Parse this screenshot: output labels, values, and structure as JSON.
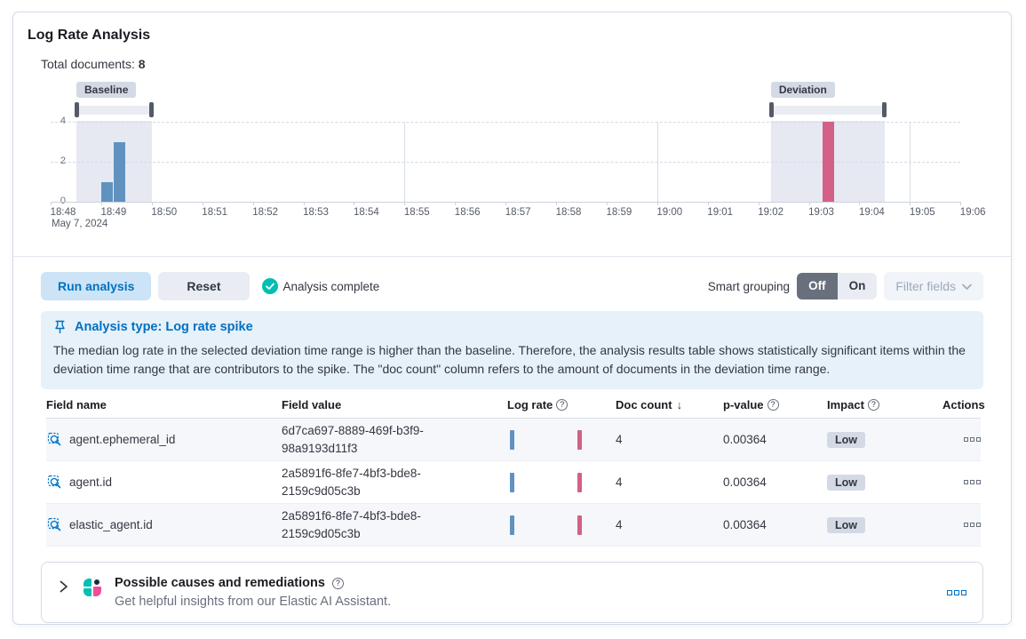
{
  "panel": {
    "title": "Log Rate Analysis",
    "total_documents_label": "Total documents:",
    "total_documents_value": "8"
  },
  "chart": {
    "type": "bar",
    "baseline_label": "Baseline",
    "deviation_label": "Deviation",
    "date_label": "May 7, 2024",
    "y_ticks": [
      4,
      2,
      0
    ],
    "y_max": 4,
    "x_ticks": [
      "18:48",
      "18:49",
      "18:50",
      "18:51",
      "18:52",
      "18:53",
      "18:54",
      "18:55",
      "18:56",
      "18:57",
      "18:58",
      "18:59",
      "19:00",
      "19:01",
      "19:02",
      "19:03",
      "19:04",
      "19:05",
      "19:06"
    ],
    "vgrid_indices": [
      7,
      12,
      17
    ],
    "windows": {
      "baseline": {
        "from_min": 0.51,
        "to_min": 2.0
      },
      "deviation": {
        "from_min": 14.25,
        "to_min": 16.5
      }
    },
    "bars": [
      {
        "series": "baseline",
        "time": "18:49",
        "doc_count": 1,
        "at_min": 1.0
      },
      {
        "series": "baseline",
        "time": "18:49",
        "doc_count": 3,
        "at_min": 1.25
      },
      {
        "series": "deviation",
        "time": "19:03",
        "doc_count": 4,
        "at_min": 15.27
      }
    ],
    "colors": {
      "baseline": "#6092C0",
      "deviation": "#D36086"
    }
  },
  "toolbar": {
    "run_label": "Run analysis",
    "reset_label": "Reset",
    "status_label": "Analysis complete",
    "smart_grouping_label": "Smart grouping",
    "off_label": "Off",
    "on_label": "On",
    "filter_fields_label": "Filter fields"
  },
  "callout": {
    "title": "Analysis type: Log rate spike",
    "body": "The median log rate in the selected deviation time range is higher than the baseline. Therefore, the analysis results table shows statistically significant items within the deviation time range that are contributors to the spike. The \"doc count\" column refers to the amount of documents in the deviation time range."
  },
  "table": {
    "headers": {
      "field_name": "Field name",
      "field_value": "Field value",
      "log_rate": "Log rate",
      "doc_count": "Doc count",
      "p_value": "p-value",
      "impact": "Impact",
      "actions": "Actions"
    },
    "rows": [
      {
        "field_name": "agent.ephemeral_id",
        "field_value": "6d7ca697-8889-469f-b3f9-98a9193d11f3",
        "doc_count": "4",
        "p_value": "0.00364",
        "impact": "Low"
      },
      {
        "field_name": "agent.id",
        "field_value": "2a5891f6-8fe7-4bf3-bde8-2159c9d05c3b",
        "doc_count": "4",
        "p_value": "0.00364",
        "impact": "Low"
      },
      {
        "field_name": "elastic_agent.id",
        "field_value": "2a5891f6-8fe7-4bf3-bde8-2159c9d05c3b",
        "doc_count": "4",
        "p_value": "0.00364",
        "impact": "Low"
      }
    ]
  },
  "ai_panel": {
    "title": "Possible causes and remediations",
    "subtitle": "Get helpful insights from our Elastic AI Assistant."
  }
}
